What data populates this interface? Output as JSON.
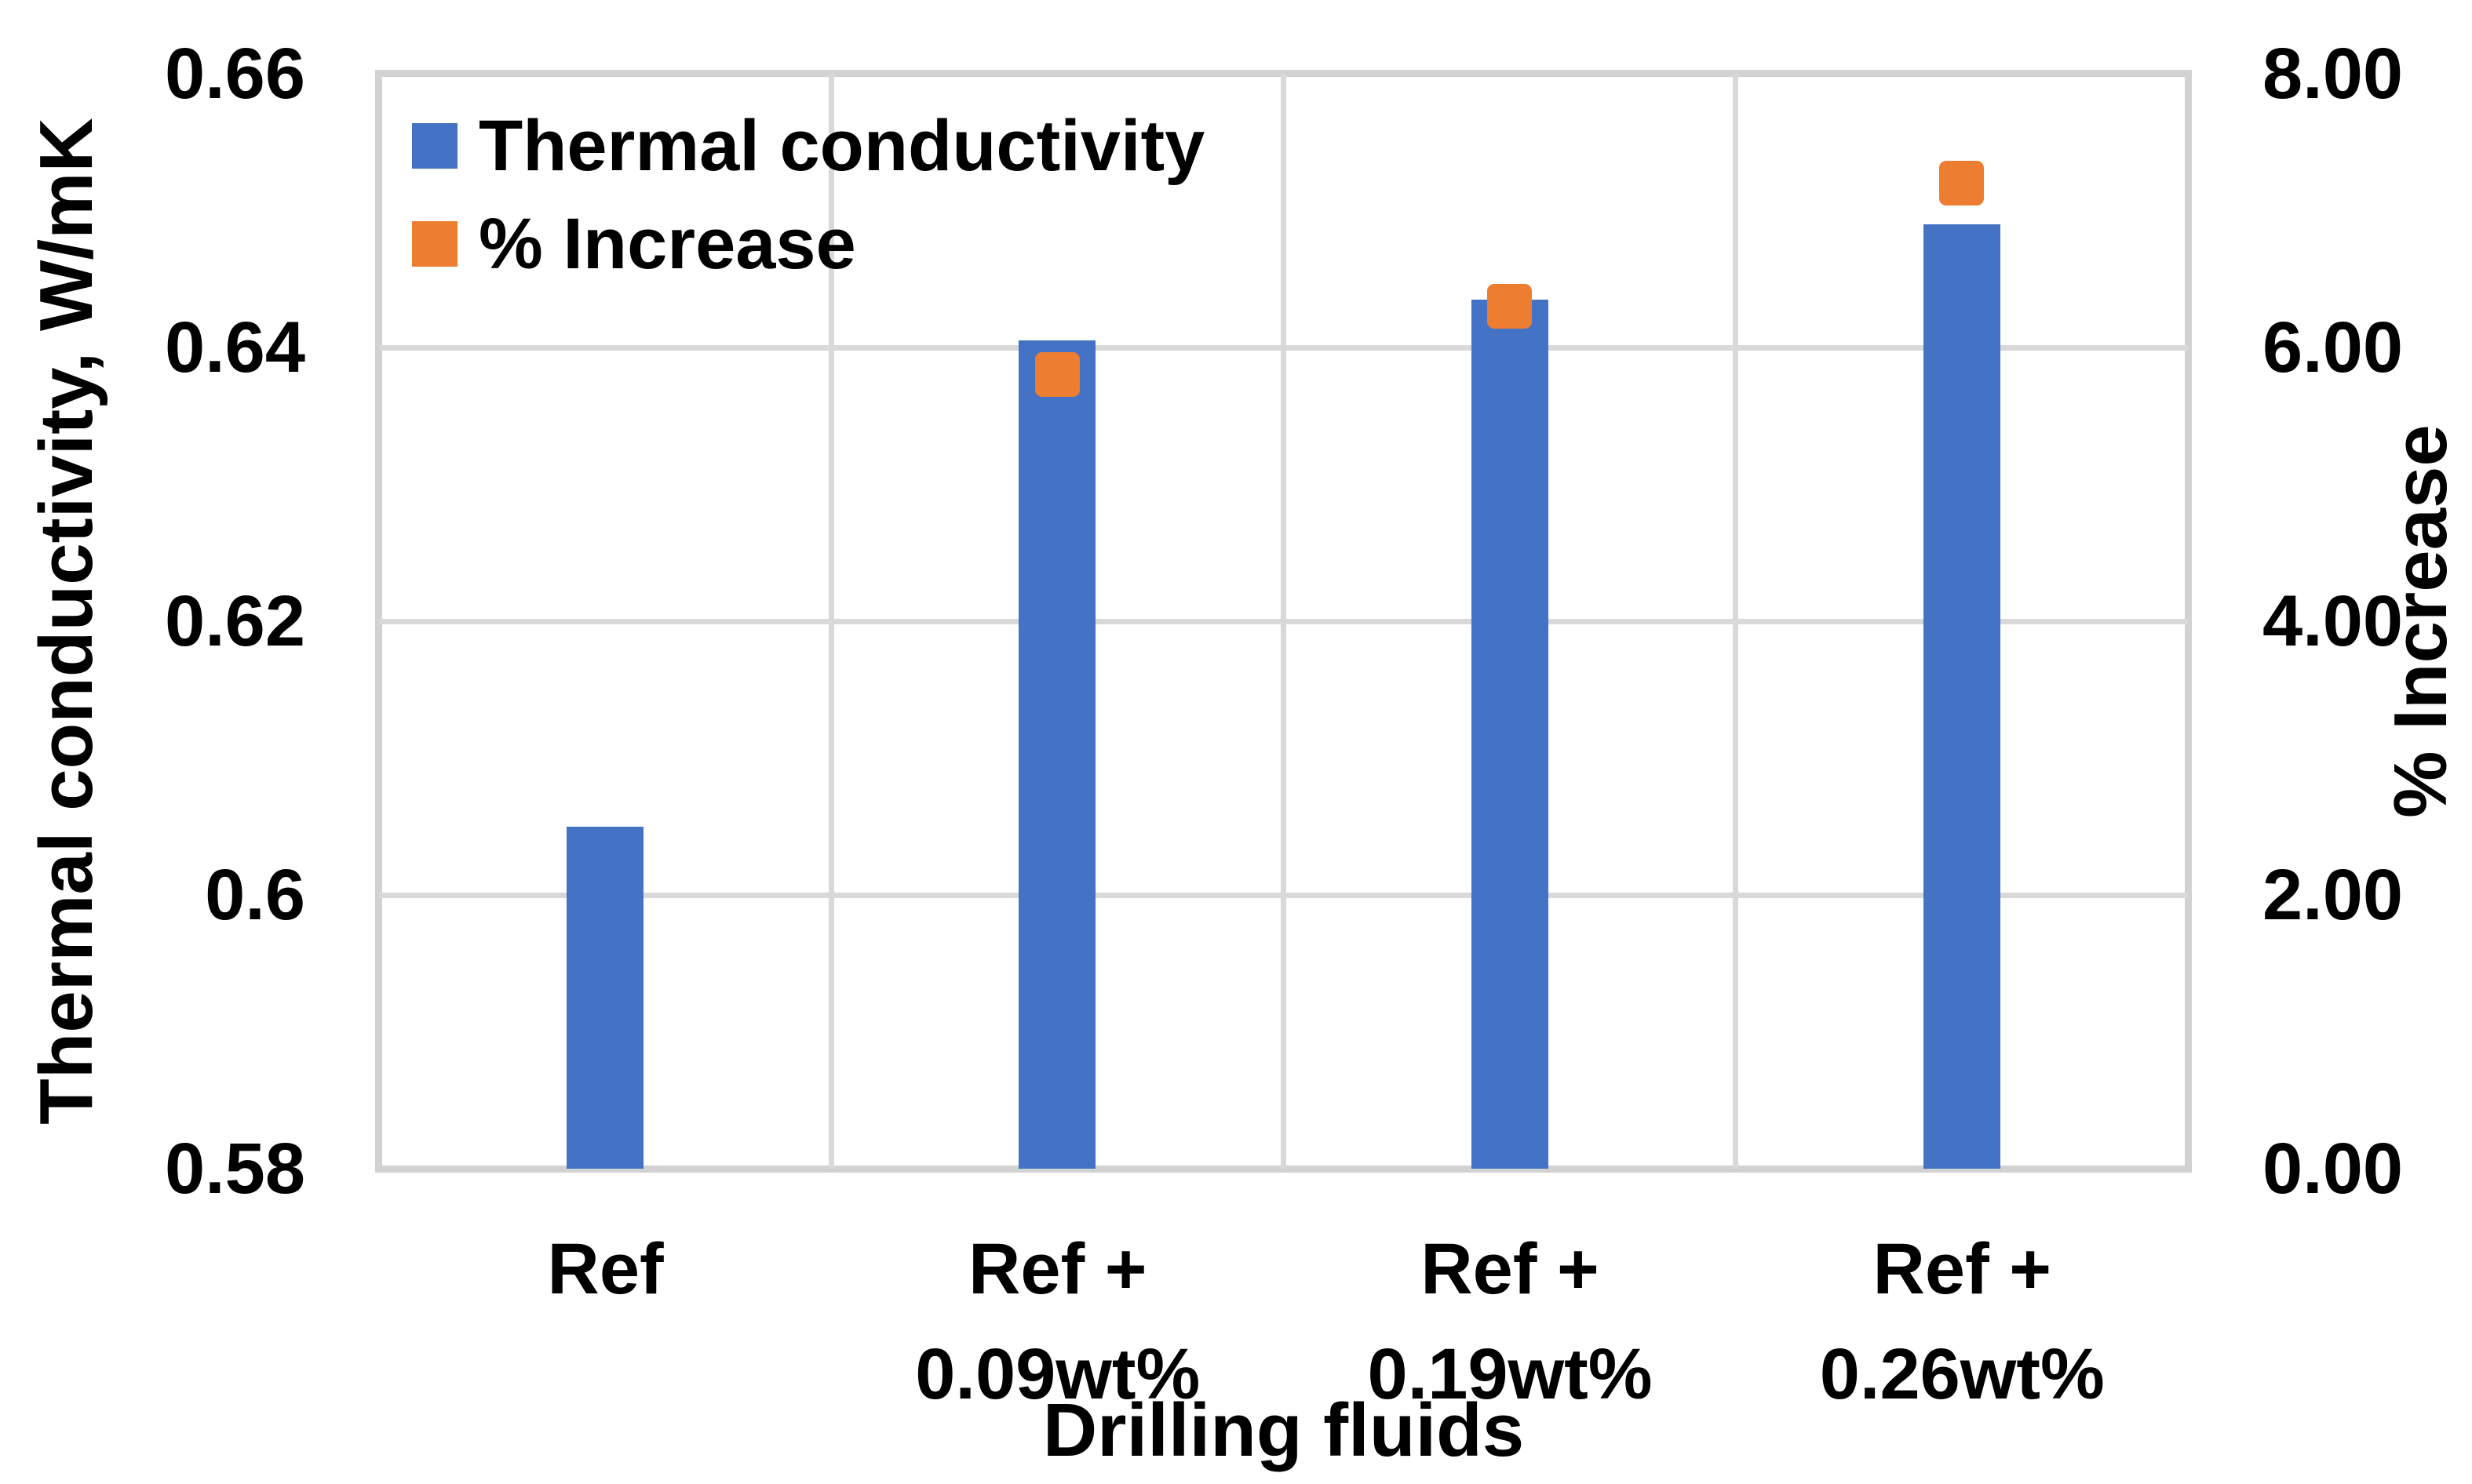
{
  "chart_data": {
    "type": "bar",
    "title": "",
    "categories": [
      "Ref",
      "Ref + 0.09wt%",
      "Ref + 0.19wt%",
      "Ref + 0.26wt%"
    ],
    "category_label_lines": [
      [
        "Ref"
      ],
      [
        "Ref +",
        "0.09wt%"
      ],
      [
        "Ref +",
        "0.19wt%"
      ],
      [
        "Ref +",
        "0.26wt%"
      ]
    ],
    "series": [
      {
        "name": "Thermal conductivity",
        "chart_type": "bar",
        "axis": "left",
        "color": "#4472C4",
        "values": [
          0.605,
          0.6405,
          0.6435,
          0.649
        ]
      },
      {
        "name": "% Increase",
        "chart_type": "scatter",
        "marker": "square",
        "axis": "right",
        "color": "#ED7D31",
        "values": [
          null,
          5.8,
          6.3,
          7.2
        ]
      }
    ],
    "axes": {
      "left": {
        "label": "Thermal conductivity, W/mK",
        "min": 0.58,
        "max": 0.66,
        "tick_labels": [
          "0.66",
          "0.64",
          "0.62",
          "0.6",
          "0.58"
        ]
      },
      "right": {
        "label": "% Increase",
        "min": 0,
        "max": 8,
        "tick_labels": [
          "8.00",
          "6.00",
          "4.00",
          "2.00",
          "0.00"
        ]
      },
      "x": {
        "label": "Drilling fluids"
      }
    },
    "legend": {
      "position": "top-left",
      "entries": [
        "Thermal conductivity",
        "% Increase"
      ]
    },
    "grid": {
      "horizontal": true,
      "vertical": true
    }
  },
  "colors": {
    "bar_blue": "#4472C4",
    "marker_orange": "#ED7D31",
    "gridline": "#D9D9D9",
    "plot_border": "#D2D2D2",
    "text": "#000000",
    "background": "#FFFFFF"
  }
}
